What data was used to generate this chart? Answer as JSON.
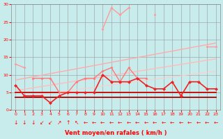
{
  "xlabel": "Vent moyen/en rafales ( km/h )",
  "xlim": [
    -0.5,
    23.5
  ],
  "ylim": [
    0,
    30
  ],
  "yticks": [
    0,
    5,
    10,
    15,
    20,
    25,
    30
  ],
  "xticks": [
    0,
    1,
    2,
    3,
    4,
    5,
    6,
    7,
    8,
    9,
    10,
    11,
    12,
    13,
    14,
    15,
    16,
    17,
    18,
    19,
    20,
    21,
    22,
    23
  ],
  "background_color": "#c8ecec",
  "grid_color": "#999999",
  "series": [
    {
      "name": "trend_upper",
      "color": "#ffaaaa",
      "lw": 1.0,
      "marker": null,
      "markersize": 0,
      "x": [
        0,
        23
      ],
      "y": [
        8.5,
        19.0
      ]
    },
    {
      "name": "trend_lower",
      "color": "#ffbbbb",
      "lw": 1.0,
      "marker": null,
      "markersize": 0,
      "x": [
        0,
        23
      ],
      "y": [
        5.5,
        14.5
      ]
    },
    {
      "name": "trend_lowest",
      "color": "#ffcccc",
      "lw": 0.8,
      "marker": null,
      "markersize": 0,
      "x": [
        0,
        23
      ],
      "y": [
        3.5,
        11.0
      ]
    },
    {
      "name": "rafales_high",
      "color": "#ff9999",
      "lw": 1.0,
      "marker": "D",
      "markersize": 2,
      "x": [
        0,
        1,
        2,
        3,
        4,
        5,
        6,
        7,
        8,
        9,
        10,
        11,
        12,
        13,
        14,
        15,
        16,
        17,
        18,
        19,
        20,
        21,
        22,
        23
      ],
      "y": [
        13,
        12,
        null,
        null,
        null,
        null,
        null,
        null,
        null,
        null,
        23,
        29,
        27,
        29,
        null,
        null,
        27,
        null,
        null,
        null,
        null,
        null,
        18,
        18
      ]
    },
    {
      "name": "rafales_mid",
      "color": "#ff7777",
      "lw": 1.0,
      "marker": "D",
      "markersize": 2,
      "x": [
        0,
        1,
        2,
        3,
        4,
        5,
        6,
        7,
        8,
        9,
        10,
        11,
        12,
        13,
        14,
        15,
        16,
        17,
        18,
        19,
        20,
        21,
        22,
        23
      ],
      "y": [
        null,
        null,
        9,
        9,
        9,
        5,
        5,
        8,
        9,
        9,
        11,
        12,
        8,
        12,
        9,
        9,
        null,
        null,
        null,
        null,
        null,
        null,
        null,
        null
      ]
    },
    {
      "name": "wind_main",
      "color": "#ee2222",
      "lw": 1.2,
      "marker": "D",
      "markersize": 2.5,
      "x": [
        0,
        1,
        2,
        3,
        4,
        5,
        6,
        7,
        8,
        9,
        10,
        11,
        12,
        13,
        14,
        15,
        16,
        17,
        18,
        19,
        20,
        21,
        22,
        23
      ],
      "y": [
        7,
        4,
        4,
        4,
        2,
        4,
        5,
        5,
        5,
        5,
        10,
        8,
        8,
        8,
        9,
        7,
        6,
        6,
        8,
        4,
        8,
        8,
        6,
        6
      ]
    },
    {
      "name": "wind_flat",
      "color": "#cc0000",
      "lw": 1.3,
      "marker": null,
      "markersize": 0,
      "x": [
        0,
        23
      ],
      "y": [
        5,
        5
      ]
    },
    {
      "name": "wind_flat2",
      "color": "#aa0000",
      "lw": 1.3,
      "marker": null,
      "markersize": 0,
      "x": [
        0,
        23
      ],
      "y": [
        3.5,
        3.5
      ]
    }
  ],
  "arrow_symbols": [
    "↓",
    "↓",
    "↓",
    "↙",
    "↙",
    "↗",
    "↑",
    "↖",
    "←",
    "←",
    "←",
    "←",
    "←",
    "←",
    "←",
    "←",
    "←",
    "←",
    "←",
    "←",
    "←",
    "←",
    "←",
    "←"
  ],
  "arrow_color": "#ff0000",
  "arrow_fontsize": 5.5
}
